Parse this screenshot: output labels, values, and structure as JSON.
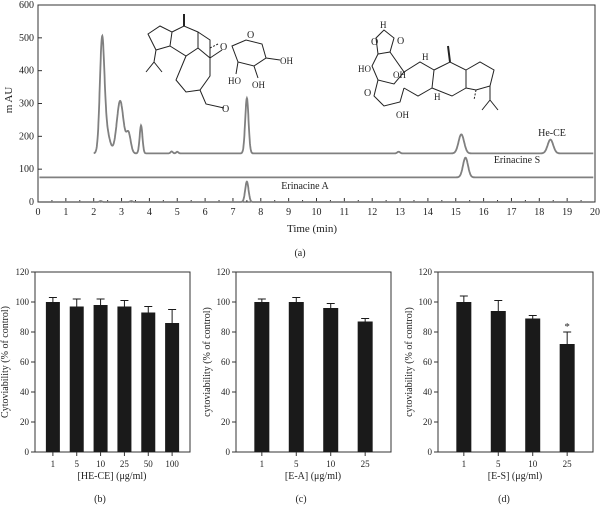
{
  "chart_data": [
    {
      "type": "line",
      "panel_label": "(a)",
      "xlabel": "Time (min)",
      "ylabel": "m AU",
      "xlim": [
        0,
        20
      ],
      "ylim": [
        0,
        600
      ],
      "x_ticks": [
        0,
        1,
        2,
        3,
        4,
        5,
        6,
        7,
        8,
        9,
        10,
        11,
        12,
        13,
        14,
        15,
        16,
        17,
        18,
        19,
        20
      ],
      "y_ticks": [
        0,
        100,
        200,
        300,
        400,
        500,
        600
      ],
      "series": [
        {
          "name": "He-CE",
          "baseline": 148,
          "color": "#808080",
          "peaks": [
            {
              "t": 2.3,
              "h": 325,
              "w": 0.08
            },
            {
              "t": 2.45,
              "h": 70,
              "w": 0.12
            },
            {
              "t": 2.95,
              "h": 160,
              "w": 0.12
            },
            {
              "t": 3.25,
              "h": 60,
              "w": 0.08
            },
            {
              "t": 3.7,
              "h": 85,
              "w": 0.05
            },
            {
              "t": 4.8,
              "h": 6,
              "w": 0.04
            },
            {
              "t": 5.0,
              "h": 5,
              "w": 0.04
            },
            {
              "t": 7.5,
              "h": 168,
              "w": 0.06
            },
            {
              "t": 12.95,
              "h": 5,
              "w": 0.05
            },
            {
              "t": 15.2,
              "h": 58,
              "w": 0.1
            },
            {
              "t": 18.4,
              "h": 42,
              "w": 0.1
            }
          ]
        },
        {
          "name": "Erinacine S",
          "baseline": 75,
          "color": "#808080",
          "peaks": [
            {
              "t": 15.35,
              "h": 60,
              "w": 0.09
            }
          ]
        },
        {
          "name": "Erinacine A",
          "baseline": 0,
          "color": "#808080",
          "peaks": [
            {
              "t": 7.5,
              "h": 62,
              "w": 0.06
            },
            {
              "t": 2.25,
              "h": 3,
              "w": 0.04
            },
            {
              "t": 3.35,
              "h": 3,
              "w": 0.04
            }
          ]
        }
      ]
    },
    {
      "type": "bar",
      "panel_label": "(b)",
      "xlabel": "[HE-CE] (μg/ml)",
      "ylabel": "Cytoviability (% of control)",
      "ylim": [
        0,
        120
      ],
      "y_ticks": [
        0,
        20,
        40,
        60,
        80,
        100,
        120
      ],
      "categories": [
        "1",
        "5",
        "10",
        "25",
        "50",
        "100"
      ],
      "values": [
        100,
        97,
        98,
        97,
        93,
        86
      ],
      "errors": [
        3,
        5,
        4,
        4,
        4,
        9
      ],
      "significance": [
        "",
        "",
        "",
        "",
        "",
        ""
      ]
    },
    {
      "type": "bar",
      "panel_label": "(c)",
      "xlabel": "[E-A] (μg/ml)",
      "ylabel": "cytoviability (% of control)",
      "ylim": [
        0,
        120
      ],
      "y_ticks": [
        0,
        20,
        40,
        60,
        80,
        100,
        120
      ],
      "categories": [
        "1",
        "5",
        "10",
        "25"
      ],
      "values": [
        100,
        100,
        96,
        87
      ],
      "errors": [
        2,
        3,
        3,
        2
      ],
      "significance": [
        "",
        "",
        "",
        ""
      ]
    },
    {
      "type": "bar",
      "panel_label": "(d)",
      "xlabel": "[E-S] (μg/ml)",
      "ylabel": "cytoviability (% of control)",
      "ylim": [
        0,
        120
      ],
      "y_ticks": [
        0,
        20,
        40,
        60,
        80,
        100,
        120
      ],
      "categories": [
        "1",
        "5",
        "10",
        "25"
      ],
      "values": [
        100,
        94,
        89,
        72
      ],
      "errors": [
        4,
        7,
        2,
        8
      ],
      "significance": [
        "",
        "",
        "",
        "*"
      ]
    }
  ]
}
